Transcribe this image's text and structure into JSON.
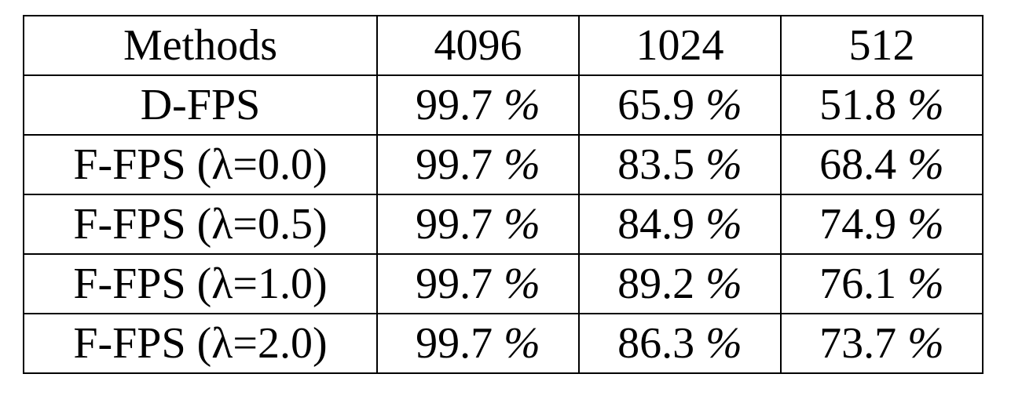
{
  "table": {
    "headers": [
      "Methods",
      "4096",
      "1024",
      "512"
    ],
    "rows": [
      {
        "method": "D-FPS",
        "values": [
          "99.7",
          "65.9",
          "51.8"
        ]
      },
      {
        "method": "F-FPS (λ=0.0)",
        "values": [
          "99.7",
          "83.5",
          "68.4"
        ]
      },
      {
        "method": "F-FPS (λ=0.5)",
        "values": [
          "99.7",
          "84.9",
          "74.9"
        ]
      },
      {
        "method": "F-FPS (λ=1.0)",
        "values": [
          "99.7",
          "89.2",
          "76.1"
        ]
      },
      {
        "method": "F-FPS (λ=2.0)",
        "values": [
          "99.7",
          "86.3",
          "73.7"
        ]
      }
    ],
    "percent_sign": "%"
  }
}
